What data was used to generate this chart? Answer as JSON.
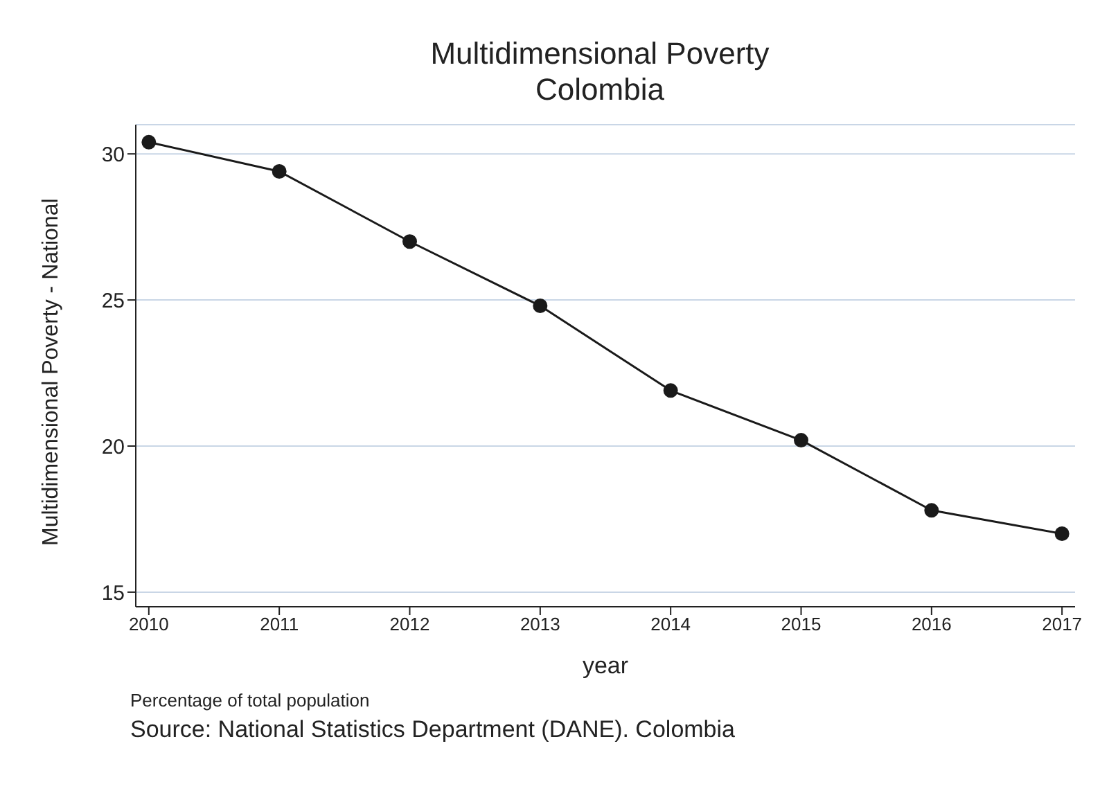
{
  "chart_data": {
    "type": "line",
    "title": "Multidimensional Poverty",
    "subtitle": "Colombia",
    "xlabel": "year",
    "ylabel": "Multidimensional Poverty - National",
    "x": [
      2010,
      2011,
      2012,
      2013,
      2014,
      2015,
      2016,
      2017
    ],
    "series": [
      {
        "color": "#1a1a1a",
        "values": [
          30.4,
          29.4,
          27.0,
          24.8,
          21.9,
          20.2,
          17.8,
          17.0
        ]
      }
    ],
    "xlim": [
      2009.9,
      2017.1
    ],
    "xticks": [
      2010,
      2011,
      2012,
      2013,
      2014,
      2015,
      2016,
      2017
    ],
    "ylim": [
      14.5,
      31
    ],
    "yticks": [
      15,
      20,
      25,
      30
    ],
    "grid": "y",
    "legend": false,
    "marker": "circle",
    "line_style": "solid",
    "annotations": [
      "Percentage of total population",
      "Source: National Statistics Department (DANE). Colombia"
    ]
  }
}
